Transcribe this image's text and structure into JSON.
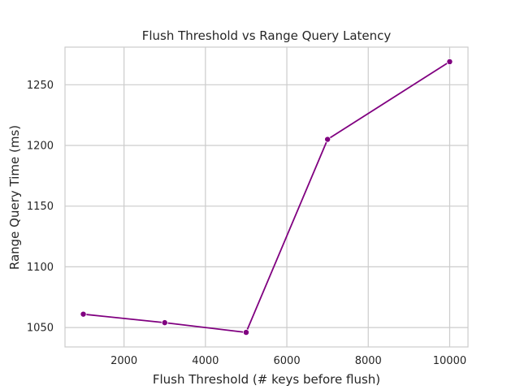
{
  "chart_data": {
    "type": "line",
    "title": "Flush Threshold vs Range Query Latency",
    "xlabel": "Flush Threshold (# keys before flush)",
    "ylabel": "Range Query Time (ms)",
    "xlim": [
      550,
      10450
    ],
    "ylim": [
      1034,
      1281
    ],
    "xticks": [
      2000,
      4000,
      6000,
      8000,
      10000
    ],
    "yticks": [
      1050,
      1100,
      1150,
      1200,
      1250
    ],
    "grid": true,
    "legend": "none",
    "series": [
      {
        "color": "#800080",
        "marker": "circle",
        "x": [
          1000,
          3000,
          5000,
          7000,
          10000
        ],
        "y": [
          1061,
          1054,
          1046,
          1205,
          1269
        ]
      }
    ]
  }
}
